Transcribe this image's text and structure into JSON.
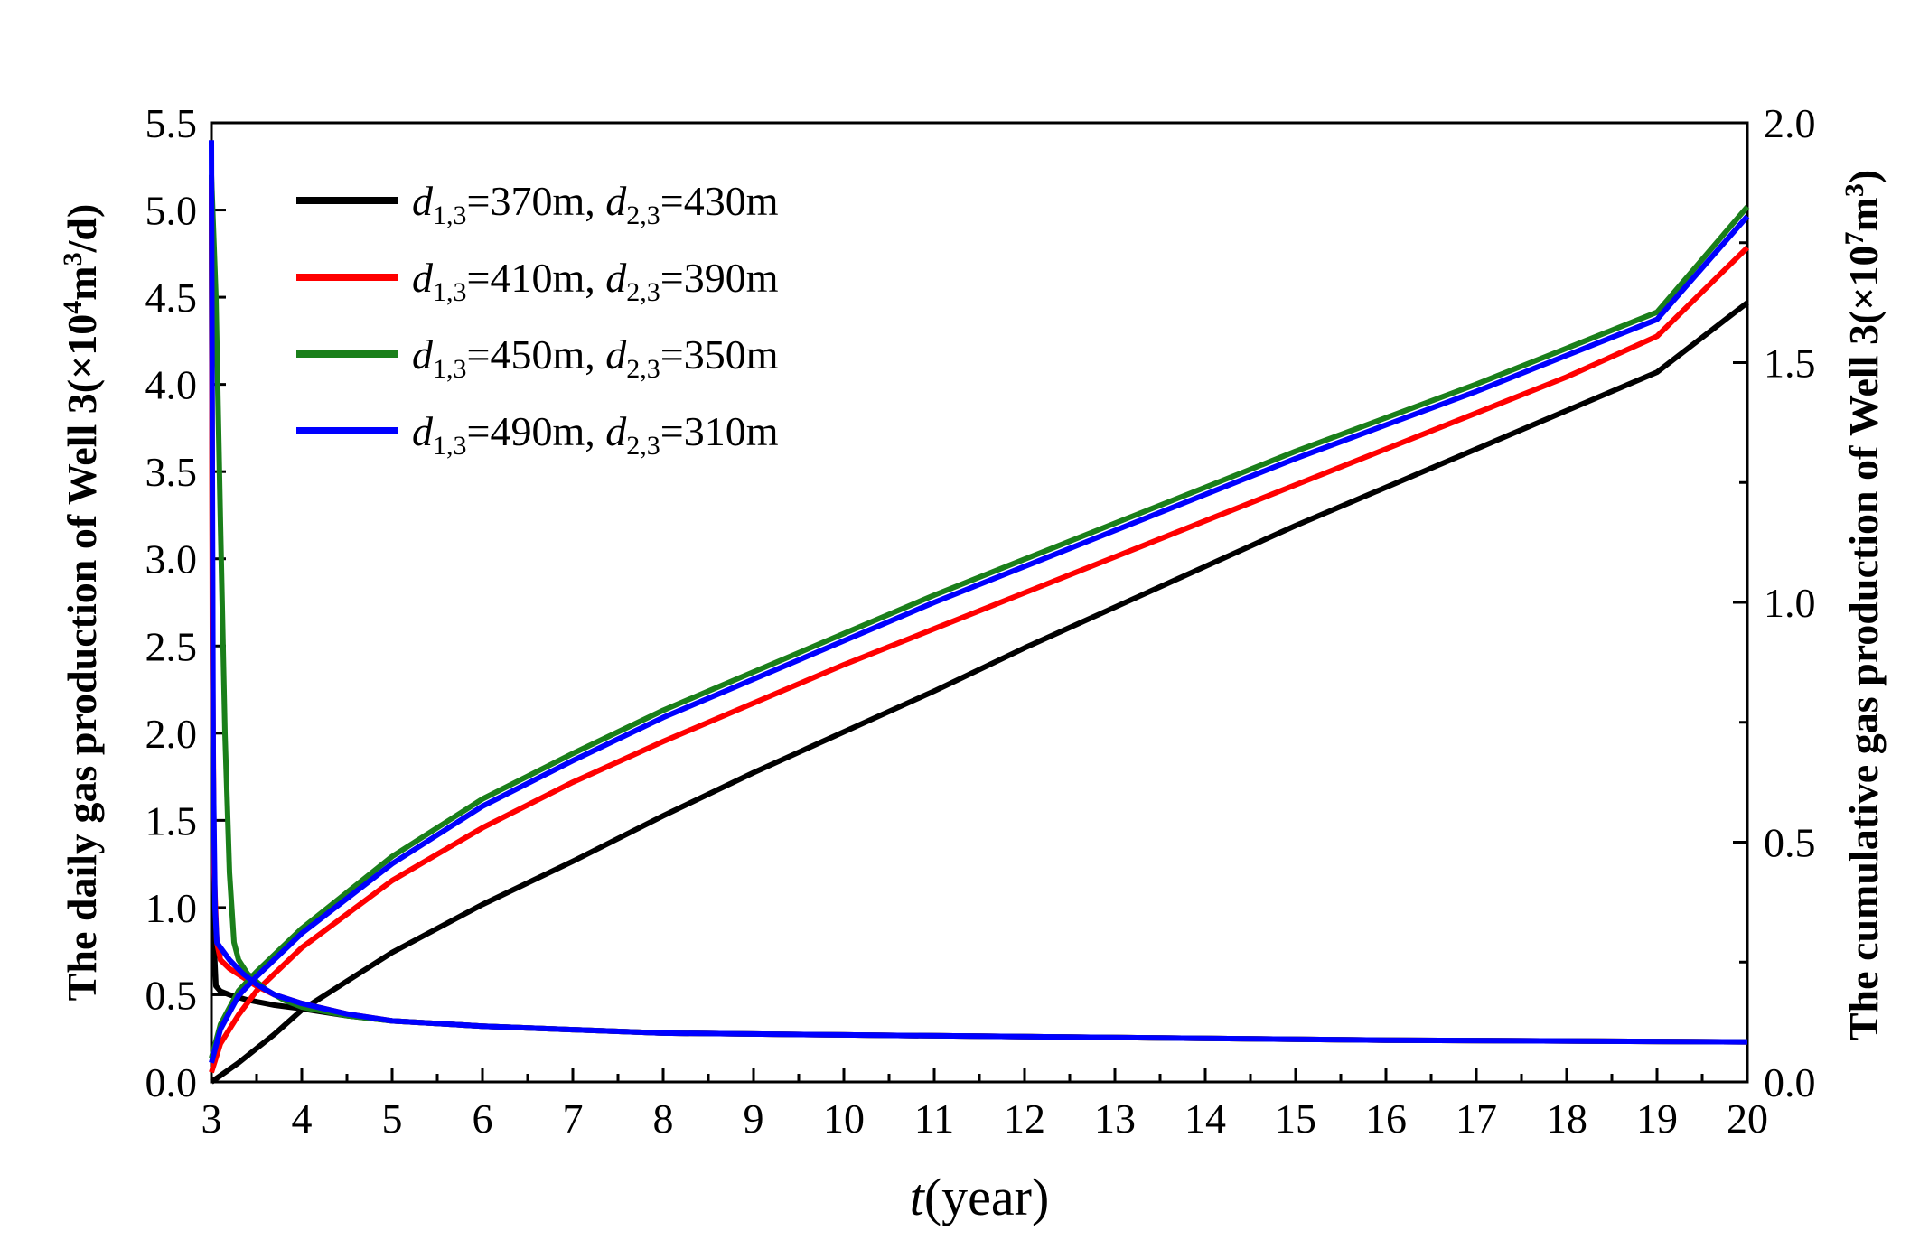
{
  "chart_data": {
    "type": "line",
    "title": "",
    "xlabel_italic": "t",
    "xlabel_rest": "(year)",
    "ylabel": {
      "text": "The daily gas production of Well 3(×10",
      "sup1": "4",
      "mid": "m",
      "sup2": "3",
      "tail": "/d)"
    },
    "y2label": {
      "text": "The cumulative gas production of Well 3(×10",
      "sup1": "7",
      "mid": "m",
      "sup2": "3",
      "tail": ")"
    },
    "xlim": [
      3,
      20
    ],
    "ylim": [
      0,
      5.5
    ],
    "y2lim": [
      0,
      2.0
    ],
    "x_ticks": [
      "3",
      "4",
      "5",
      "6",
      "7",
      "8",
      "9",
      "10",
      "11",
      "12",
      "13",
      "14",
      "15",
      "16",
      "17",
      "18",
      "19",
      "20"
    ],
    "y_ticks": [
      "0.0",
      "0.5",
      "1.0",
      "1.5",
      "2.0",
      "2.5",
      "3.0",
      "3.5",
      "4.0",
      "4.5",
      "5.0",
      "5.5"
    ],
    "y2_ticks": [
      "0.0",
      "0.5",
      "1.0",
      "1.5",
      "2.0"
    ],
    "legend_position": "top-left",
    "series": [
      {
        "name": "d1,3=370m, d2,3=430m",
        "d1": "370m",
        "d2": "430m",
        "color": "#000000",
        "daily": {
          "x": [
            3.0,
            3.02,
            3.05,
            3.1,
            3.2,
            3.4,
            3.7,
            4.0,
            4.5,
            5,
            6,
            7,
            8,
            10,
            12,
            14,
            16,
            18,
            20
          ],
          "y": [
            5.2,
            0.9,
            0.55,
            0.52,
            0.5,
            0.47,
            0.44,
            0.42,
            0.38,
            0.35,
            0.32,
            0.3,
            0.28,
            0.27,
            0.26,
            0.25,
            0.24,
            0.235,
            0.23
          ]
        },
        "cumulative": {
          "x": [
            3.0,
            3.3,
            3.7,
            4,
            5,
            6,
            7,
            8,
            9,
            10,
            11,
            12,
            13,
            14,
            15,
            16,
            17,
            18,
            19,
            20
          ],
          "y": [
            0.0,
            0.04,
            0.1,
            0.15,
            0.27,
            0.37,
            0.46,
            0.555,
            0.645,
            0.73,
            0.815,
            0.905,
            0.99,
            1.075,
            1.16,
            1.24,
            1.32,
            1.4,
            1.48,
            1.625
          ]
        }
      },
      {
        "name": "d1,3=410m, d2,3=390m",
        "d1": "410m",
        "d2": "390m",
        "color": "#ff0000",
        "daily": {
          "x": [
            3.0,
            3.01,
            3.03,
            3.06,
            3.1,
            3.2,
            3.35,
            3.5,
            3.7,
            4.0,
            4.5,
            5,
            6,
            7,
            8,
            10,
            12,
            14,
            16,
            18,
            20
          ],
          "y": [
            5.2,
            2.6,
            1.2,
            0.8,
            0.7,
            0.65,
            0.6,
            0.55,
            0.5,
            0.45,
            0.39,
            0.35,
            0.32,
            0.3,
            0.28,
            0.27,
            0.26,
            0.25,
            0.24,
            0.235,
            0.23
          ]
        },
        "cumulative": {
          "x": [
            3.0,
            3.1,
            3.3,
            3.5,
            4,
            5,
            6,
            7,
            8,
            9,
            10,
            11,
            12,
            13,
            14,
            15,
            16,
            17,
            18,
            19,
            20
          ],
          "y": [
            0.02,
            0.08,
            0.14,
            0.19,
            0.28,
            0.42,
            0.53,
            0.625,
            0.71,
            0.79,
            0.87,
            0.945,
            1.02,
            1.095,
            1.17,
            1.245,
            1.32,
            1.395,
            1.47,
            1.555,
            1.74
          ]
        }
      },
      {
        "name": "d1,3=450m, d2,3=350m",
        "d1": "450m",
        "d2": "350m",
        "color": "#1a7f1a",
        "daily": {
          "x": [
            3.0,
            3.05,
            3.1,
            3.15,
            3.2,
            3.25,
            3.3,
            3.4,
            3.6,
            3.8,
            4.0,
            4.5,
            5,
            6,
            7,
            8,
            10,
            12,
            14,
            16,
            18,
            20
          ],
          "y": [
            5.2,
            4.5,
            3.2,
            2.0,
            1.2,
            0.8,
            0.7,
            0.62,
            0.53,
            0.47,
            0.43,
            0.38,
            0.35,
            0.32,
            0.3,
            0.28,
            0.27,
            0.26,
            0.25,
            0.24,
            0.235,
            0.23
          ]
        },
        "cumulative": {
          "x": [
            3.0,
            3.1,
            3.3,
            3.5,
            4,
            5,
            6,
            7,
            8,
            9,
            10,
            11,
            12,
            13,
            14,
            15,
            16,
            17,
            18,
            19,
            20
          ],
          "y": [
            0.05,
            0.12,
            0.19,
            0.23,
            0.32,
            0.47,
            0.59,
            0.685,
            0.775,
            0.855,
            0.935,
            1.015,
            1.09,
            1.165,
            1.24,
            1.315,
            1.385,
            1.455,
            1.53,
            1.605,
            1.825
          ]
        }
      },
      {
        "name": "d1,3=490m, d2,3=310m",
        "d1": "490m",
        "d2": "310m",
        "color": "#0000ff",
        "daily": {
          "x": [
            3.0,
            3.01,
            3.02,
            3.04,
            3.06,
            3.1,
            3.2,
            3.35,
            3.5,
            3.7,
            4.0,
            4.5,
            5,
            6,
            7,
            8,
            10,
            12,
            14,
            16,
            18,
            20
          ],
          "y": [
            5.4,
            3.5,
            1.8,
            1.0,
            0.8,
            0.77,
            0.7,
            0.62,
            0.56,
            0.5,
            0.45,
            0.39,
            0.35,
            0.32,
            0.3,
            0.28,
            0.27,
            0.26,
            0.25,
            0.24,
            0.235,
            0.23
          ]
        },
        "cumulative": {
          "x": [
            3.0,
            3.1,
            3.3,
            3.5,
            4,
            5,
            6,
            7,
            8,
            9,
            10,
            11,
            12,
            13,
            14,
            15,
            16,
            17,
            18,
            19,
            20
          ],
          "y": [
            0.04,
            0.11,
            0.18,
            0.22,
            0.31,
            0.455,
            0.575,
            0.67,
            0.76,
            0.84,
            0.92,
            1.0,
            1.075,
            1.15,
            1.225,
            1.3,
            1.37,
            1.44,
            1.515,
            1.59,
            1.805
          ]
        }
      }
    ]
  }
}
